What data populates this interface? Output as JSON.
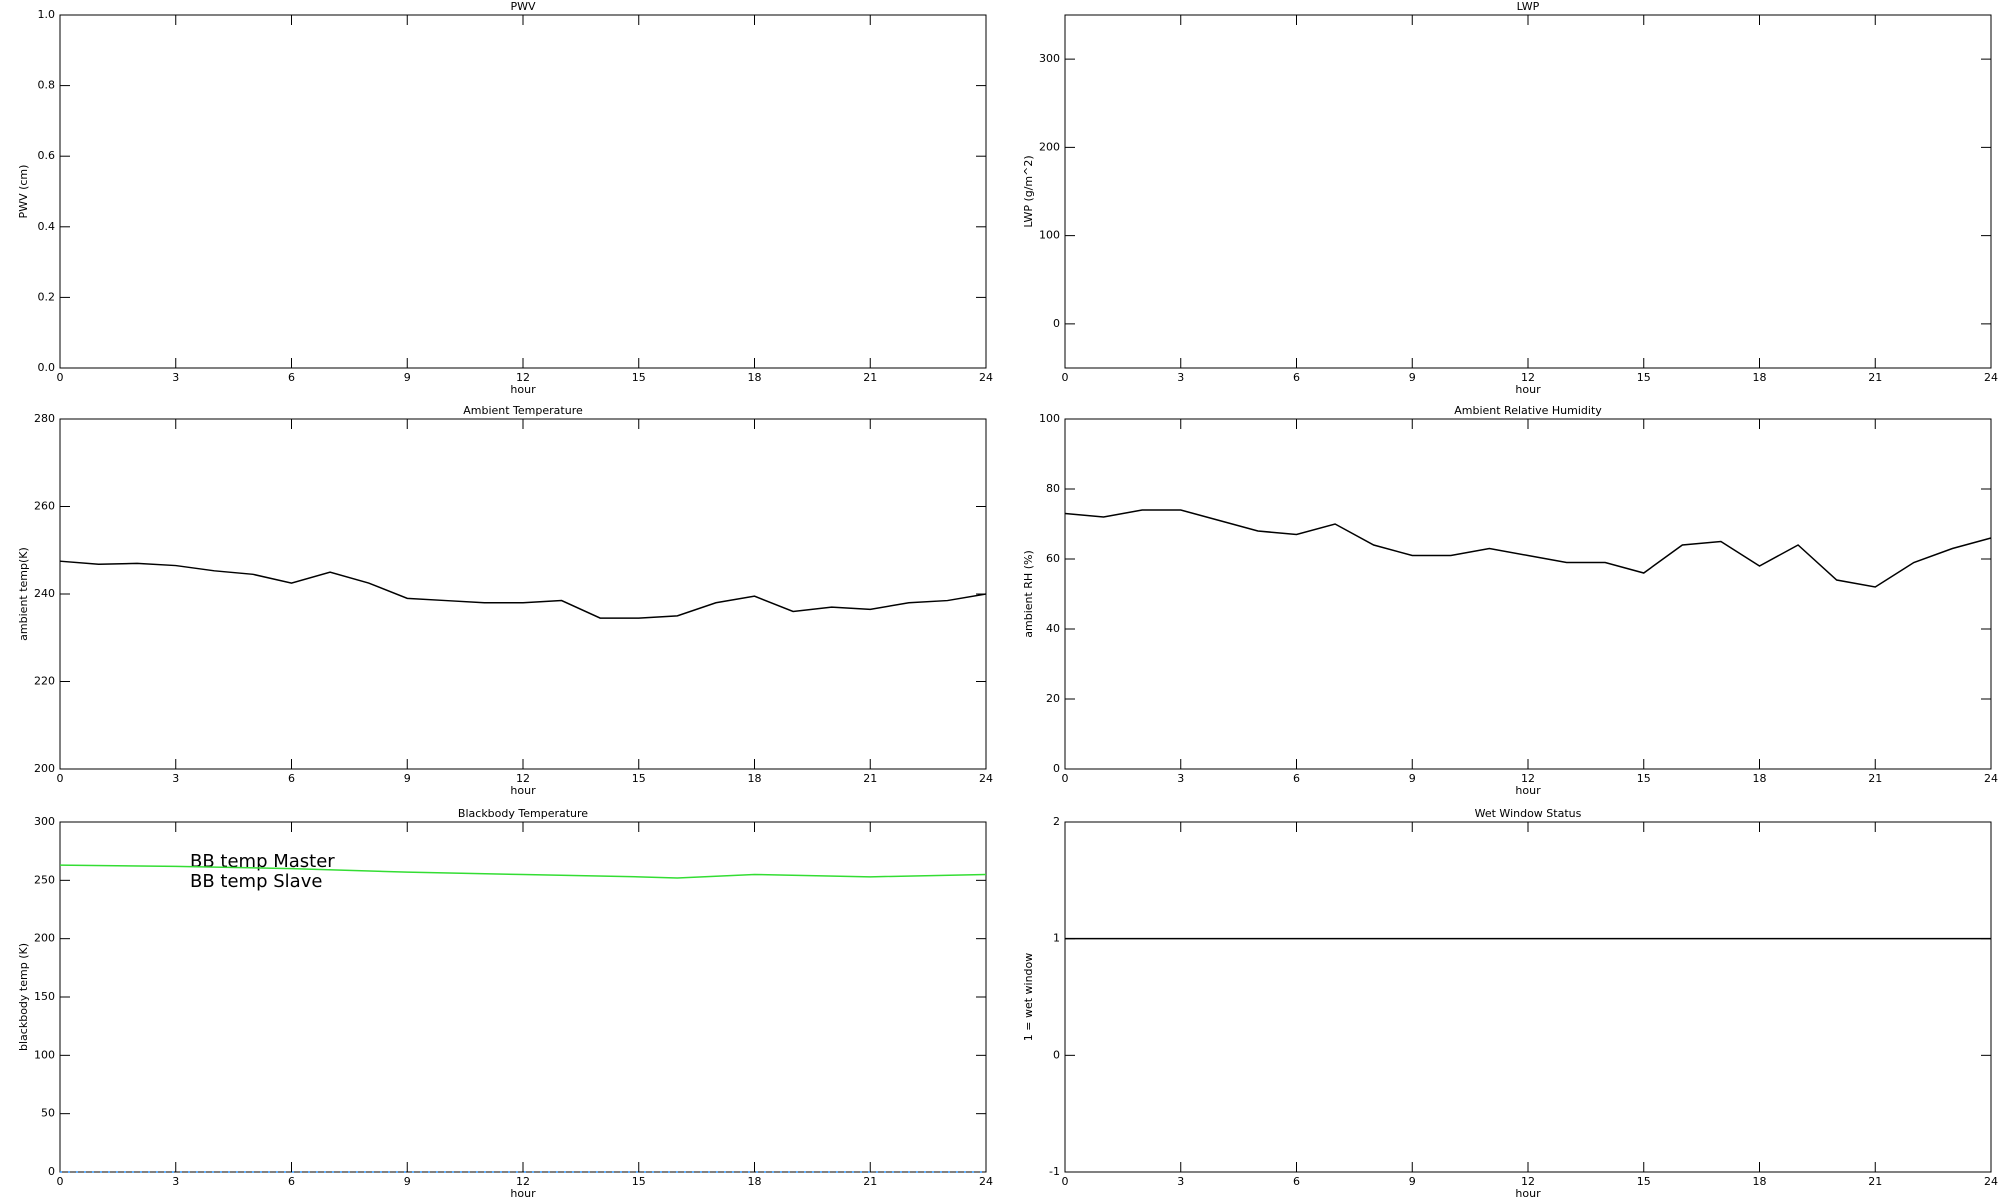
{
  "chart_data": [
    {
      "type": "line",
      "title": "PWV",
      "x_label": "hour",
      "y_label": "PWV (cm)",
      "xlim": [
        0,
        24
      ],
      "xticks": [
        0,
        3,
        6,
        9,
        12,
        15,
        18,
        21,
        24
      ],
      "ylim": [
        0,
        1
      ],
      "yticks": [
        {
          "value": 0,
          "label": "0.0"
        },
        {
          "value": 0.2,
          "label": "0.2"
        },
        {
          "value": 0.4,
          "label": "0.4"
        },
        {
          "value": 0.6,
          "label": "0.6"
        },
        {
          "value": 0.8,
          "label": "0.8"
        },
        {
          "value": 1,
          "label": "1.0"
        }
      ],
      "series": []
    },
    {
      "type": "line",
      "title": "LWP",
      "x_label": "hour",
      "y_label": "LWP (g/m^2)",
      "xlim": [
        0,
        24
      ],
      "xticks": [
        0,
        3,
        6,
        9,
        12,
        15,
        18,
        21,
        24
      ],
      "ylim": [
        -50,
        350
      ],
      "yticks": [
        0,
        100,
        200,
        300
      ],
      "series": []
    },
    {
      "type": "line",
      "title": "Ambient Temperature",
      "x_label": "hour",
      "y_label": "ambient temp(K)",
      "xlim": [
        0,
        24
      ],
      "xticks": [
        0,
        3,
        6,
        9,
        12,
        15,
        18,
        21,
        24
      ],
      "ylim": [
        200,
        280
      ],
      "yticks": [
        200,
        220,
        240,
        260,
        280
      ],
      "x": [
        0,
        1,
        2,
        3,
        4,
        5,
        6,
        7,
        8,
        9,
        10,
        11,
        12,
        13,
        14,
        15,
        16,
        17,
        18,
        19,
        20,
        21,
        22,
        23,
        24
      ],
      "series": [
        {
          "color": "#000000",
          "values": [
            247.5,
            246.8,
            247,
            246.5,
            245.3,
            244.5,
            242.5,
            245,
            242.5,
            239,
            238.5,
            238,
            238,
            238.5,
            234.5,
            234.5,
            235,
            238,
            239.5,
            236,
            237,
            236.5,
            238,
            238.5,
            240
          ]
        }
      ]
    },
    {
      "type": "line",
      "title": "Ambient Relative Humidity",
      "x_label": "hour",
      "y_label": "ambient RH (%)",
      "xlim": [
        0,
        24
      ],
      "xticks": [
        0,
        3,
        6,
        9,
        12,
        15,
        18,
        21,
        24
      ],
      "ylim": [
        0,
        100
      ],
      "yticks": [
        0,
        20,
        40,
        60,
        80,
        100
      ],
      "x": [
        0,
        1,
        2,
        3,
        4,
        5,
        6,
        7,
        8,
        9,
        10,
        11,
        12,
        13,
        14,
        15,
        16,
        17,
        18,
        19,
        20,
        21,
        22,
        23,
        24
      ],
      "series": [
        {
          "color": "#000000",
          "values": [
            73,
            72,
            74,
            74,
            71,
            68,
            67,
            70,
            64,
            61,
            61,
            63,
            61,
            59,
            59,
            56,
            64,
            65,
            58,
            64,
            54,
            52,
            59,
            63,
            66
          ]
        }
      ]
    },
    {
      "type": "line",
      "title": "Blackbody Temperature",
      "x_label": "hour",
      "y_label": "blackbody temp (K)",
      "xlim": [
        0,
        24
      ],
      "xticks": [
        0,
        3,
        6,
        9,
        12,
        15,
        18,
        21,
        24
      ],
      "ylim": [
        0,
        300
      ],
      "yticks": [
        0,
        50,
        100,
        150,
        200,
        250,
        300
      ],
      "x": [
        0,
        3,
        6,
        9,
        12,
        15,
        16,
        18,
        21,
        24
      ],
      "series": [
        {
          "name": "BB temp Master",
          "color": "#3399ff",
          "values": [
            0,
            0,
            0,
            0,
            0,
            0,
            0,
            0,
            0,
            0
          ]
        },
        {
          "name": "BB temp Slave",
          "color": "#33dd33",
          "values": [
            263,
            262,
            260,
            257,
            255,
            253,
            252,
            255,
            253,
            255
          ]
        }
      ]
    },
    {
      "type": "line",
      "title": "Wet Window Status",
      "x_label": "hour",
      "y_label": "1 = wet window",
      "xlim": [
        0,
        24
      ],
      "xticks": [
        0,
        3,
        6,
        9,
        12,
        15,
        18,
        21,
        24
      ],
      "ylim": [
        -1,
        2
      ],
      "yticks": [
        -1,
        0,
        1,
        2
      ],
      "x": [
        0,
        24
      ],
      "series": [
        {
          "color": "#000000",
          "values": [
            1,
            1
          ]
        }
      ]
    }
  ]
}
